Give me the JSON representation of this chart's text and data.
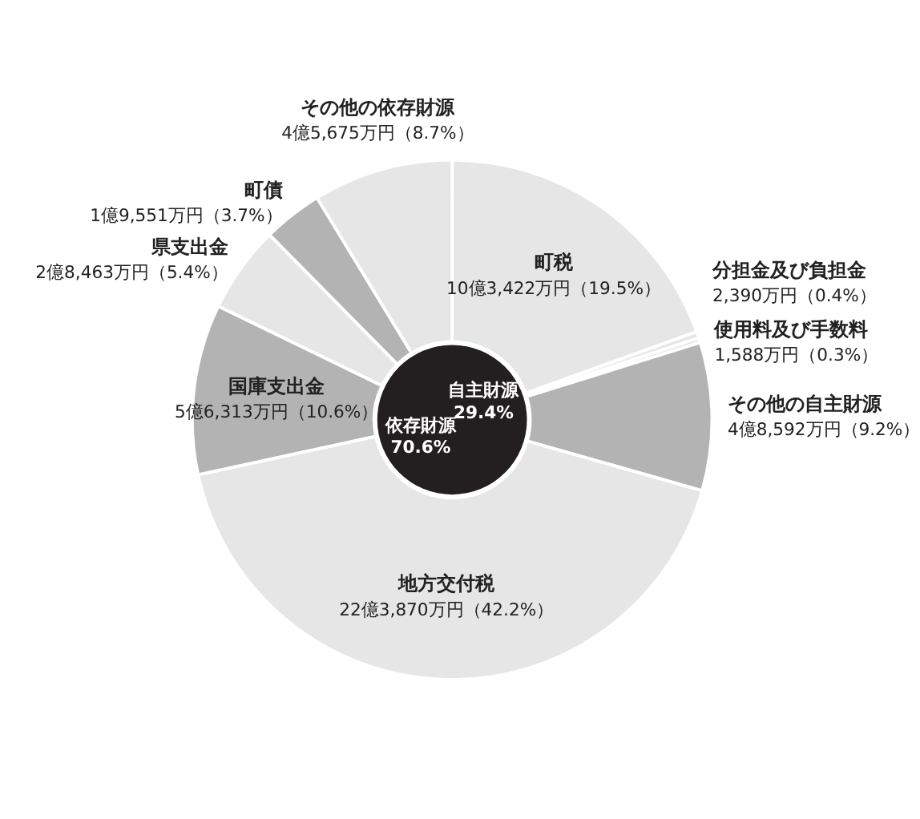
{
  "chart_data": {
    "type": "donut",
    "categories": [
      "町税",
      "分担金及び負担金",
      "使用料及び手数料",
      "その他の自主財源",
      "地方交付税",
      "国庫支出金",
      "県支出金",
      "町債",
      "その他の依存財源"
    ],
    "values": [
      19.5,
      0.4,
      0.3,
      9.2,
      42.2,
      10.6,
      5.4,
      3.7,
      8.7
    ],
    "value_labels": [
      "10億3,422万円（19.5%）",
      "2,390万円（0.4%）",
      "1,588万円（0.3%）",
      "4億8,592万円（9.2%）",
      "22億3,870万円（42.2%）",
      "5億6,313万円（10.6%）",
      "2億8,463万円（5.4%）",
      "1億9,551万円（3.7%）",
      "4億5,675万円（8.7%）"
    ],
    "colors": [
      "#e6e6e6",
      "#e6e6e6",
      "#e6e6e6",
      "#b3b3b3",
      "#e6e6e6",
      "#b3b3b3",
      "#e6e6e6",
      "#b3b3b3",
      "#e6e6e6"
    ],
    "annotations": [
      "自主財源 29.4%",
      "依存財源 70.6%"
    ]
  }
}
